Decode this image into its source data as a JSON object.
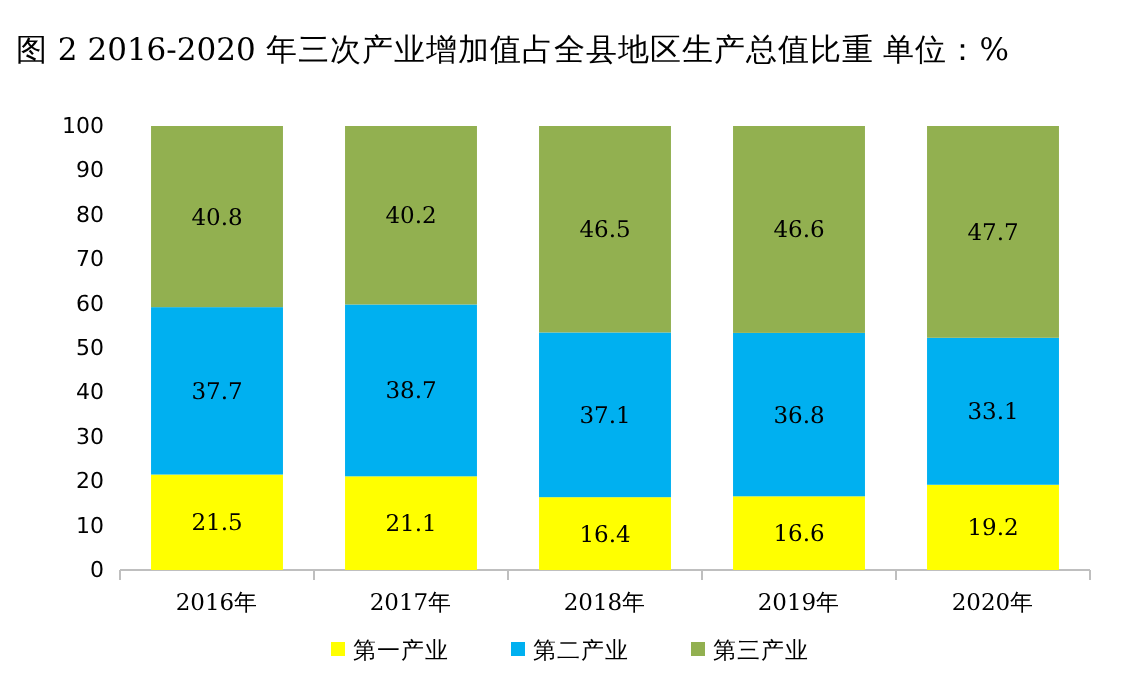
{
  "chart_data": {
    "type": "bar",
    "title": "图 2 2016-2020 年三次产业增加值占全县地区生产总值比重 单位：%",
    "stacked": true,
    "categories": [
      "2016年",
      "2017年",
      "2018年",
      "2019年",
      "2020年"
    ],
    "series": [
      {
        "name": "第一产业",
        "color": "#ffff00",
        "values": [
          21.5,
          21.1,
          16.4,
          16.6,
          19.2
        ]
      },
      {
        "name": "第二产业",
        "color": "#00b0f0",
        "values": [
          37.7,
          38.7,
          37.1,
          36.8,
          33.1
        ]
      },
      {
        "name": "第三产业",
        "color": "#92b050",
        "values": [
          40.8,
          40.2,
          46.5,
          46.6,
          47.7
        ]
      }
    ],
    "ylim": [
      0,
      100
    ],
    "yticks": [
      0,
      10,
      20,
      30,
      40,
      50,
      60,
      70,
      80,
      90,
      100
    ],
    "data_labels": true,
    "legend": "bottom"
  }
}
